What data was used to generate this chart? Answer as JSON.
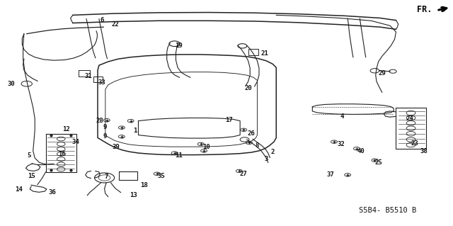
{
  "bg_color": "#ffffff",
  "diagram_code": "S5B4- B5510 B",
  "fr_label": "FR.",
  "line_color": "#222222",
  "text_color": "#111111",
  "label_fontsize": 6.5,
  "diagram_fontsize": 7.5
}
